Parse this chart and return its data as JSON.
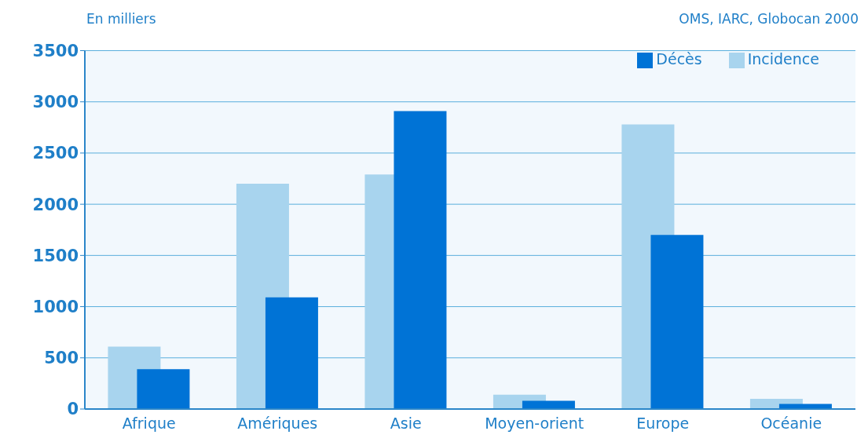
{
  "chart_data": {
    "type": "bar",
    "ylabel": "En milliers",
    "annotations": [
      "OMS, IARC, Globocan 2000"
    ],
    "categories": [
      "Afrique",
      "Amériques",
      "Asie",
      "Moyen-orient",
      "Europe",
      "Océanie"
    ],
    "series": [
      {
        "name": "Incidence",
        "color": "#a8d4ee",
        "values": [
          610,
          2200,
          2290,
          140,
          2780,
          100
        ]
      },
      {
        "name": "Décès",
        "color": "#0073d6",
        "values": [
          390,
          1090,
          2910,
          80,
          1700,
          50
        ]
      }
    ],
    "ylim": [
      0,
      3500
    ],
    "yticks": [
      0,
      500,
      1000,
      1500,
      2000,
      2500,
      3000,
      3500
    ],
    "grid": "y",
    "legend": "top right"
  }
}
